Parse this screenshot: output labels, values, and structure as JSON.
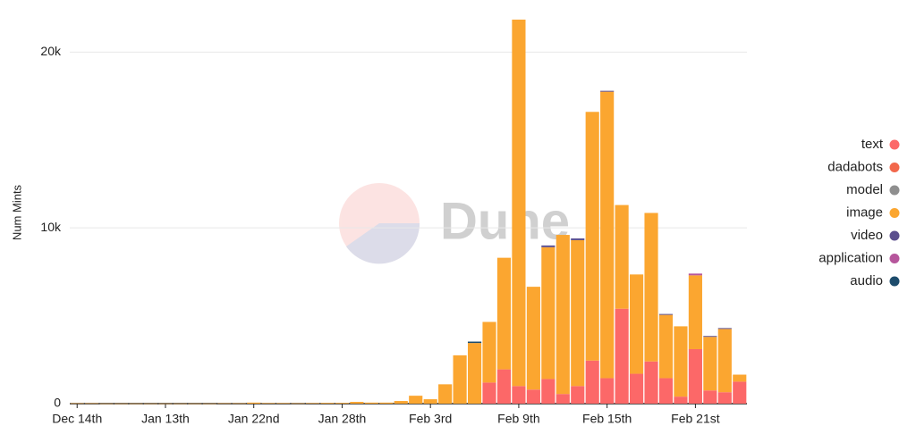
{
  "chart_data": {
    "type": "stacked_bar",
    "watermark": "Dune",
    "y_label": "Num Mints",
    "categories": [
      "Dec 14th",
      null,
      null,
      null,
      null,
      null,
      "Jan 13th",
      null,
      null,
      null,
      null,
      null,
      "Jan 22nd",
      null,
      null,
      null,
      null,
      null,
      "Jan 28th",
      null,
      null,
      null,
      null,
      null,
      "Feb 3rd",
      null,
      null,
      null,
      null,
      null,
      "Feb 9th",
      null,
      null,
      null,
      null,
      null,
      "Feb 15th",
      null,
      null,
      null,
      null,
      null,
      "Feb 21st",
      null,
      null,
      null
    ],
    "series": [
      {
        "name": "text",
        "color": "#fc6868",
        "values": [
          0,
          0,
          0,
          0,
          0,
          0,
          0,
          0,
          0,
          0,
          0,
          0,
          0,
          0,
          0,
          0,
          0,
          0,
          0,
          0,
          0,
          0,
          0,
          0,
          0,
          0,
          0,
          0,
          1200,
          1950,
          1000,
          800,
          1400,
          550,
          1000,
          2450,
          1450,
          5400,
          1700,
          2400,
          1450,
          400,
          3100,
          750,
          650,
          1250
        ]
      },
      {
        "name": "dadabots",
        "color": "#f2684c",
        "values": [
          0,
          0,
          0,
          0,
          0,
          0,
          0,
          0,
          0,
          0,
          0,
          0,
          0,
          0,
          0,
          0,
          0,
          0,
          0,
          0,
          0,
          0,
          0,
          0,
          0,
          0,
          0,
          0,
          0,
          0,
          0,
          0,
          0,
          0,
          0,
          0,
          0,
          0,
          0,
          0,
          0,
          0,
          0,
          0,
          0,
          0
        ]
      },
      {
        "name": "model",
        "color": "#8f8f8f",
        "values": [
          0,
          0,
          0,
          0,
          0,
          0,
          0,
          0,
          0,
          0,
          0,
          0,
          0,
          0,
          0,
          0,
          0,
          0,
          0,
          0,
          0,
          0,
          0,
          0,
          0,
          0,
          0,
          0,
          0,
          0,
          0,
          0,
          0,
          0,
          0,
          0,
          0,
          0,
          0,
          0,
          0,
          0,
          0,
          0,
          0,
          0
        ]
      },
      {
        "name": "image",
        "color": "#fba630",
        "values": [
          20,
          20,
          10,
          10,
          10,
          10,
          10,
          10,
          10,
          10,
          20,
          20,
          60,
          30,
          30,
          20,
          30,
          40,
          40,
          100,
          60,
          60,
          150,
          450,
          250,
          1100,
          2750,
          3450,
          3450,
          6350,
          20850,
          5850,
          7500,
          9050,
          8300,
          14150,
          16300,
          5900,
          5650,
          8450,
          3600,
          4000,
          4200,
          3050,
          3600,
          400
        ]
      },
      {
        "name": "video",
        "color": "#5b4f8e",
        "values": [
          0,
          0,
          0,
          0,
          0,
          0,
          0,
          0,
          0,
          0,
          0,
          0,
          0,
          0,
          0,
          0,
          0,
          0,
          0,
          0,
          0,
          0,
          0,
          0,
          0,
          0,
          0,
          0,
          0,
          0,
          0,
          0,
          100,
          0,
          100,
          0,
          50,
          0,
          0,
          0,
          50,
          0,
          0,
          50,
          50,
          0
        ]
      },
      {
        "name": "application",
        "color": "#b6569c",
        "values": [
          0,
          0,
          0,
          0,
          0,
          0,
          0,
          0,
          0,
          0,
          0,
          0,
          0,
          0,
          0,
          0,
          0,
          0,
          0,
          0,
          0,
          0,
          0,
          0,
          0,
          0,
          0,
          0,
          0,
          0,
          0,
          0,
          0,
          0,
          0,
          0,
          0,
          0,
          0,
          0,
          0,
          0,
          100,
          0,
          0,
          0
        ]
      },
      {
        "name": "audio",
        "color": "#1d4c6c",
        "values": [
          0,
          0,
          0,
          0,
          0,
          0,
          0,
          0,
          0,
          0,
          0,
          0,
          0,
          0,
          0,
          0,
          0,
          0,
          0,
          0,
          0,
          0,
          0,
          0,
          0,
          0,
          0,
          80,
          0,
          0,
          0,
          0,
          0,
          0,
          0,
          0,
          0,
          0,
          0,
          0,
          0,
          0,
          0,
          0,
          0,
          0
        ]
      }
    ],
    "ylim": [
      0,
      22000
    ],
    "yticks": [
      0,
      {
        "value": 10000,
        "label": "10k"
      },
      {
        "value": 20000,
        "label": "20k"
      }
    ],
    "grid": true,
    "legend": "right"
  }
}
